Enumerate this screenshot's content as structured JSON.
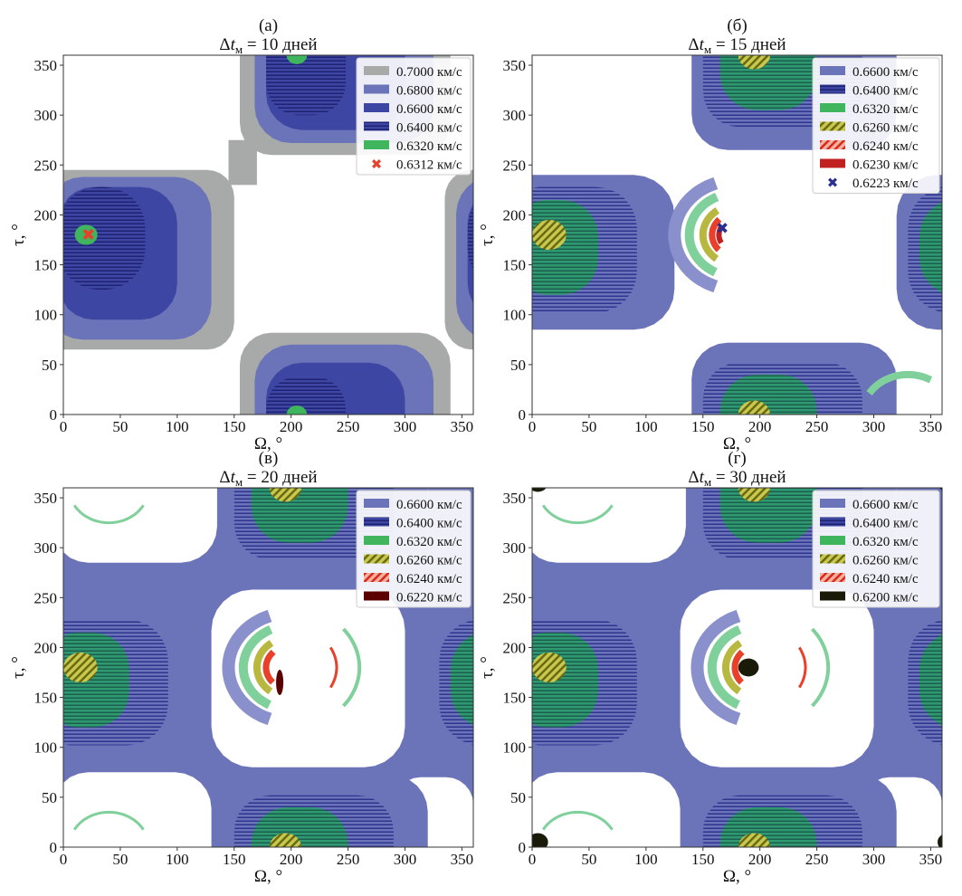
{
  "chart_data": [
    {
      "type": "contour",
      "panel_label": "(а)",
      "title": {
        "delta": "Δ",
        "t": "t",
        "sub": "м",
        "rest": " = 10 дней"
      },
      "xlabel": "Ω, °",
      "ylabel": "τ, °",
      "xlim": [
        0,
        360
      ],
      "ylim": [
        0,
        360
      ],
      "xticks": [
        "0",
        "50",
        "100",
        "150",
        "200",
        "250",
        "300",
        "350"
      ],
      "yticks": [
        "0",
        "50",
        "100",
        "150",
        "200",
        "250",
        "300",
        "350"
      ],
      "legend_position": "top-right",
      "legend": [
        {
          "label": "0.7000 км/с",
          "color": "#a8aaaa",
          "style": "solid"
        },
        {
          "label": "0.6800 км/с",
          "color": "#6b74b9",
          "style": "solid"
        },
        {
          "label": "0.6600 км/с",
          "color": "#3d47a3",
          "style": "solid"
        },
        {
          "label": "0.6400 км/с",
          "color": "#2b3090",
          "style": "stripes"
        },
        {
          "label": "0.6320 км/с",
          "color": "#3fb55e",
          "style": "solid"
        },
        {
          "label": "0.6312 км/с",
          "color": "#e8402a",
          "style": "x-marker"
        }
      ],
      "minimum_point": {
        "Omega": 22,
        "tau": 180,
        "value": "0.6312 км/с"
      }
    },
    {
      "type": "contour",
      "panel_label": "(б)",
      "title": {
        "delta": "Δ",
        "t": "t",
        "sub": "м",
        "rest": " = 15 дней"
      },
      "xlabel": "Ω, °",
      "ylabel": "τ, °",
      "xlim": [
        0,
        360
      ],
      "ylim": [
        0,
        360
      ],
      "xticks": [
        "0",
        "50",
        "100",
        "150",
        "200",
        "250",
        "300",
        "350"
      ],
      "yticks": [
        "0",
        "50",
        "100",
        "150",
        "200",
        "250",
        "300",
        "350"
      ],
      "legend_position": "top-right",
      "legend": [
        {
          "label": "0.6600 км/с",
          "color": "#6b74b9",
          "style": "solid"
        },
        {
          "label": "0.6400 км/с",
          "color": "#2b3090",
          "style": "stripes"
        },
        {
          "label": "0.6320 км/с",
          "color": "#3fb55e",
          "style": "solid"
        },
        {
          "label": "0.6260 км/с",
          "color": "#a8a820",
          "style": "hatch"
        },
        {
          "label": "0.6240 км/с",
          "color": "#e8402a",
          "style": "hatch"
        },
        {
          "label": "0.6230 км/с",
          "color": "#c02020",
          "style": "solid"
        },
        {
          "label": "0.6223 км/с",
          "color": "#2b3090",
          "style": "x-marker"
        }
      ],
      "minimum_point": {
        "Omega": 167,
        "tau": 187,
        "value": "0.6223 км/с"
      }
    },
    {
      "type": "contour",
      "panel_label": "(в)",
      "title": {
        "delta": "Δ",
        "t": "t",
        "sub": "м",
        "rest": " = 20 дней"
      },
      "xlabel": "Ω, °",
      "ylabel": "τ, °",
      "xlim": [
        0,
        360
      ],
      "ylim": [
        0,
        360
      ],
      "xticks": [
        "0",
        "50",
        "100",
        "150",
        "200",
        "250",
        "300",
        "350"
      ],
      "yticks": [
        "0",
        "50",
        "100",
        "150",
        "200",
        "250",
        "300",
        "350"
      ],
      "legend_position": "top-right",
      "legend": [
        {
          "label": "0.6600 км/с",
          "color": "#6b74b9",
          "style": "solid"
        },
        {
          "label": "0.6400 км/с",
          "color": "#2b3090",
          "style": "stripes"
        },
        {
          "label": "0.6320 км/с",
          "color": "#3fb55e",
          "style": "solid"
        },
        {
          "label": "0.6260 км/с",
          "color": "#a8a820",
          "style": "hatch"
        },
        {
          "label": "0.6240 км/с",
          "color": "#e8402a",
          "style": "hatch"
        },
        {
          "label": "0.6220 км/с",
          "color": "#5a0000",
          "style": "solid"
        }
      ]
    },
    {
      "type": "contour",
      "panel_label": "(г)",
      "title": {
        "delta": "Δ",
        "t": "t",
        "sub": "м",
        "rest": " = 30 дней"
      },
      "xlabel": "Ω, °",
      "ylabel": "τ, °",
      "xlim": [
        0,
        360
      ],
      "ylim": [
        0,
        360
      ],
      "xticks": [
        "0",
        "50",
        "100",
        "150",
        "200",
        "250",
        "300",
        "350"
      ],
      "yticks": [
        "0",
        "50",
        "100",
        "150",
        "200",
        "250",
        "300",
        "350"
      ],
      "legend_position": "top-right",
      "legend": [
        {
          "label": "0.6600 км/с",
          "color": "#6b74b9",
          "style": "solid"
        },
        {
          "label": "0.6400 км/с",
          "color": "#2b3090",
          "style": "stripes"
        },
        {
          "label": "0.6320 км/с",
          "color": "#3fb55e",
          "style": "solid"
        },
        {
          "label": "0.6260 км/с",
          "color": "#a8a820",
          "style": "hatch"
        },
        {
          "label": "0.6240 км/с",
          "color": "#e8402a",
          "style": "hatch"
        },
        {
          "label": "0.6200 км/с",
          "color": "#1a1a08",
          "style": "solid"
        }
      ]
    }
  ]
}
